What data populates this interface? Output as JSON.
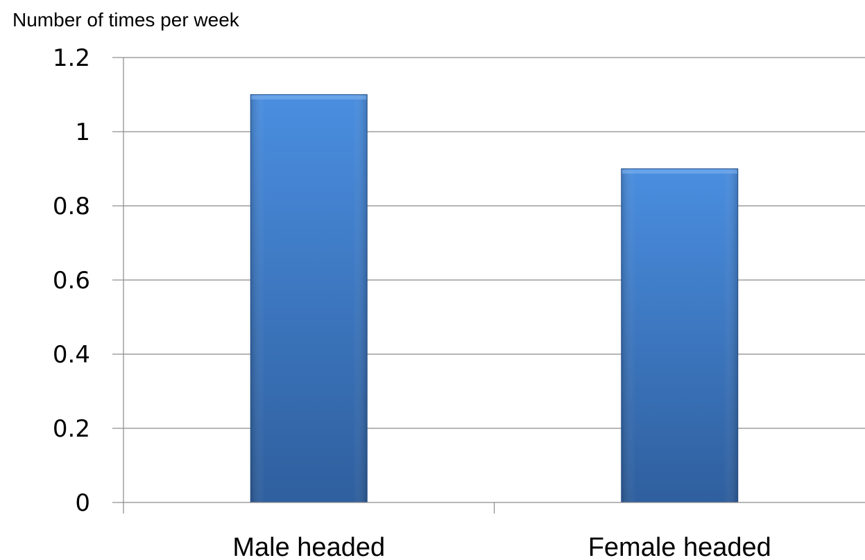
{
  "chart_data": {
    "type": "bar",
    "title": "",
    "xlabel": "",
    "ylabel": "Number of times per week",
    "categories": [
      "Male headed",
      "Female headed"
    ],
    "values": [
      1.1,
      0.9
    ],
    "ylim": [
      0,
      1.2
    ],
    "yticks": [
      "0",
      "0.2",
      "0.4",
      "0.6",
      "0.8",
      "1",
      "1.2"
    ],
    "grid": true,
    "legend": "none",
    "colors": {
      "bar_top": "#4a8ee0",
      "bar_bottom": "#2f5f9e",
      "bar_edge": "#2a5590",
      "gridline": "#8a8a8a",
      "axis": "#8a8a8a"
    }
  }
}
